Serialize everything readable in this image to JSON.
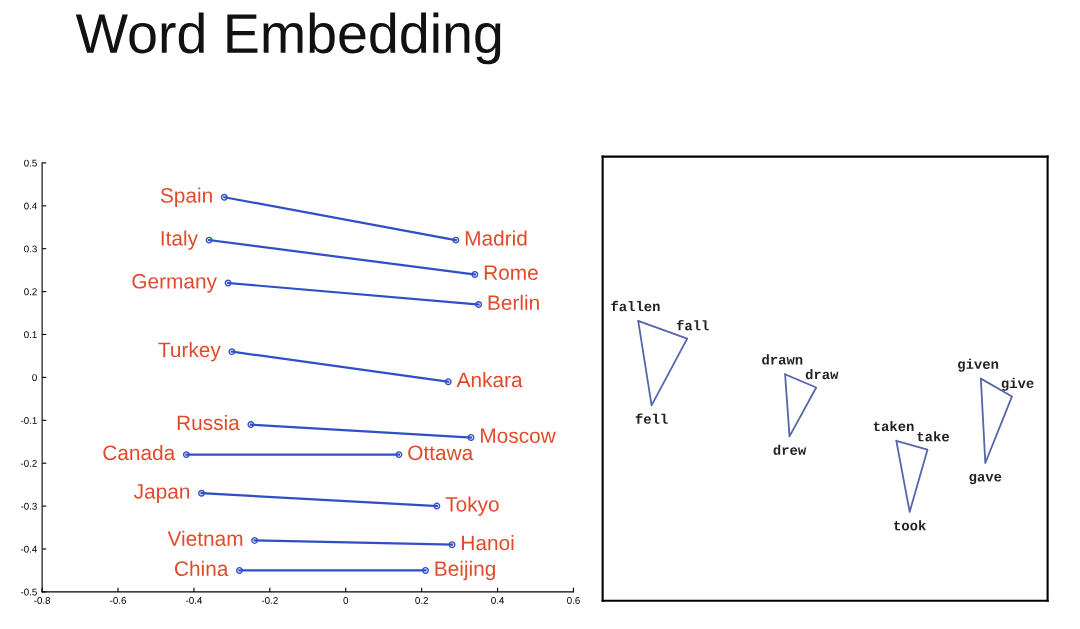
{
  "chart_data": [
    {
      "type": "line",
      "title": "Word Embedding",
      "marker": "circle",
      "grid": false,
      "legend": false,
      "xlim": [
        -0.8,
        0.6
      ],
      "xticks": [
        -0.8,
        -0.6,
        -0.4,
        -0.2,
        0,
        0.2,
        0.4,
        0.6
      ],
      "ylim": [
        -0.5,
        0.5
      ],
      "yticks": [
        -0.5,
        -0.4,
        -0.3,
        -0.2,
        -0.1,
        0,
        0.1,
        0.2,
        0.3,
        0.4,
        0.5
      ],
      "series": [
        {
          "color": "#2f4fc8",
          "x": [
            -0.32,
            0.29
          ],
          "values": [
            0.42,
            0.32
          ]
        },
        {
          "color": "#2f4fc8",
          "x": [
            -0.36,
            0.34
          ],
          "values": [
            0.32,
            0.24
          ]
        },
        {
          "color": "#2f4fc8",
          "x": [
            -0.31,
            0.35
          ],
          "values": [
            0.22,
            0.17
          ]
        },
        {
          "color": "#2f4fc8",
          "x": [
            -0.3,
            0.27
          ],
          "values": [
            0.06,
            -0.01
          ]
        },
        {
          "color": "#2f4fc8",
          "x": [
            -0.25,
            0.33
          ],
          "values": [
            -0.11,
            -0.14
          ]
        },
        {
          "color": "#2f4fc8",
          "x": [
            -0.42,
            0.14
          ],
          "values": [
            -0.18,
            -0.18
          ]
        },
        {
          "color": "#2f4fc8",
          "x": [
            -0.38,
            0.24
          ],
          "values": [
            -0.27,
            -0.3
          ]
        },
        {
          "color": "#2f4fc8",
          "x": [
            -0.24,
            0.28
          ],
          "values": [
            -0.38,
            -0.39
          ]
        },
        {
          "color": "#2f4fc8",
          "x": [
            -0.28,
            0.21
          ],
          "values": [
            -0.45,
            -0.45
          ]
        }
      ],
      "annotations": [
        {
          "text": "Spain",
          "x": -0.32,
          "y": 0.42
        },
        {
          "text": "Madrid",
          "x": 0.29,
          "y": 0.32
        },
        {
          "text": "Italy",
          "x": -0.36,
          "y": 0.32
        },
        {
          "text": "Rome",
          "x": 0.34,
          "y": 0.24
        },
        {
          "text": "Germany",
          "x": -0.31,
          "y": 0.22
        },
        {
          "text": "Berlin",
          "x": 0.35,
          "y": 0.17
        },
        {
          "text": "Turkey",
          "x": -0.3,
          "y": 0.06
        },
        {
          "text": "Ankara",
          "x": 0.27,
          "y": -0.01
        },
        {
          "text": "Russia",
          "x": -0.25,
          "y": -0.11
        },
        {
          "text": "Moscow",
          "x": 0.33,
          "y": -0.14
        },
        {
          "text": "Canada",
          "x": -0.42,
          "y": -0.18
        },
        {
          "text": "Ottawa",
          "x": 0.14,
          "y": -0.18
        },
        {
          "text": "Japan",
          "x": -0.38,
          "y": -0.27
        },
        {
          "text": "Tokyo",
          "x": 0.24,
          "y": -0.3
        },
        {
          "text": "Vietnam",
          "x": -0.24,
          "y": -0.38
        },
        {
          "text": "Hanoi",
          "x": 0.28,
          "y": -0.39
        },
        {
          "text": "China",
          "x": -0.28,
          "y": -0.45
        },
        {
          "text": "Beijing",
          "x": 0.21,
          "y": -0.45
        }
      ]
    },
    {
      "type": "other",
      "annotations": [
        "fallen",
        "fall",
        "fell",
        "drawn",
        "draw",
        "drew",
        "taken",
        "take",
        "took",
        "given",
        "give",
        "gave"
      ]
    }
  ]
}
